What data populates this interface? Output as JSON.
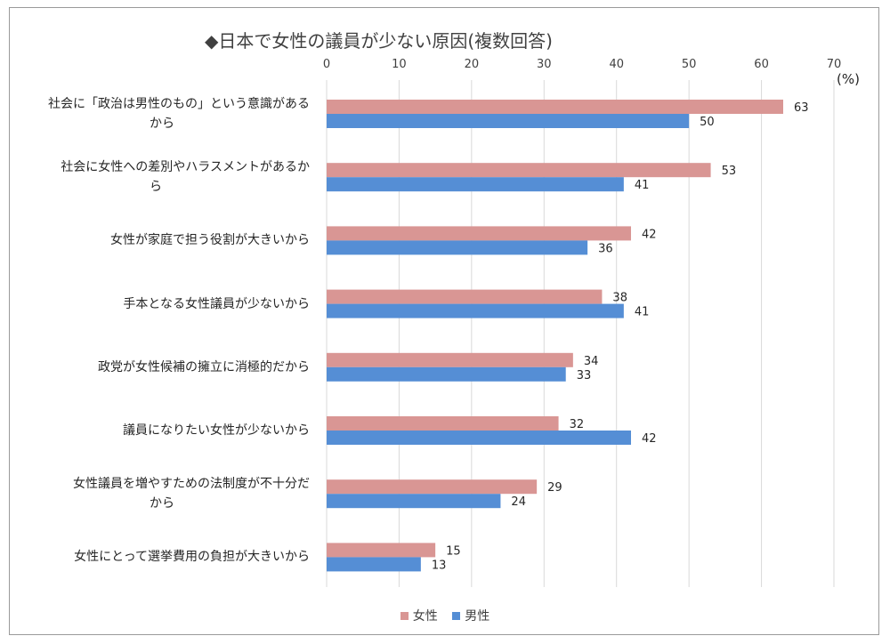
{
  "chart_data": {
    "type": "bar",
    "orientation": "horizontal",
    "title": "◆日本で女性の議員が少ない原因(複数回答)",
    "unit": "(%)",
    "categories": [
      "社会に「政治は男性のもの」という意識があるから",
      "社会に女性への差別やハラスメントがあるから",
      "女性が家庭で担う役割が大きいから",
      "手本となる女性議員が少ないから",
      "政党が女性候補の擁立に消極的だから",
      "議員になりたい女性が少ないから",
      "女性議員を増やすための法制度が不十分だから",
      "女性にとって選挙費用の負担が大きいから"
    ],
    "category_lines": [
      [
        "社会に「政治は男性のもの」という意識がある",
        "から"
      ],
      [
        "社会に女性への差別やハラスメントがあるか",
        "ら"
      ],
      [
        "女性が家庭で担う役割が大きいから"
      ],
      [
        "手本となる女性議員が少ないから"
      ],
      [
        "政党が女性候補の擁立に消極的だから"
      ],
      [
        "議員になりたい女性が少ないから"
      ],
      [
        "女性議員を増やすための法制度が不十分だ",
        "から"
      ],
      [
        "女性にとって選挙費用の負担が大きいから"
      ]
    ],
    "series": [
      {
        "name": "女性",
        "color": "#d99694",
        "values": [
          63,
          53,
          42,
          38,
          34,
          32,
          29,
          15
        ]
      },
      {
        "name": "男性",
        "color": "#558ed5",
        "values": [
          50,
          41,
          36,
          41,
          33,
          42,
          24,
          13
        ]
      }
    ],
    "xlim": [
      0,
      70
    ],
    "xticks": [
      0,
      10,
      20,
      30,
      40,
      50,
      60,
      70
    ],
    "grid": true,
    "axis_position": "top",
    "legend_position": "bottom"
  }
}
